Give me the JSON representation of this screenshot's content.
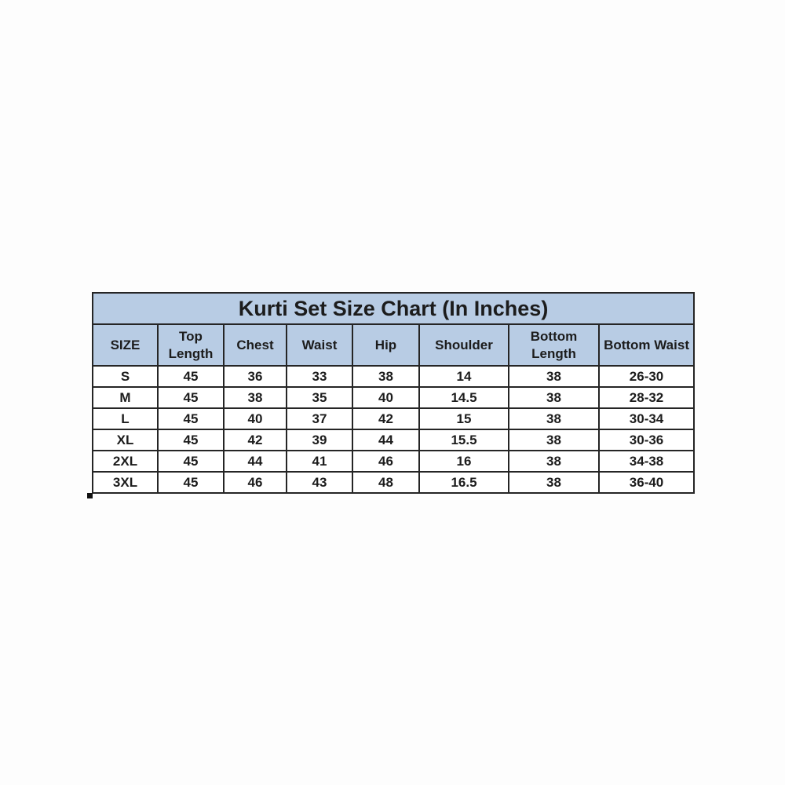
{
  "chart_data": {
    "type": "table",
    "title": "Kurti Set Size Chart (In Inches)",
    "columns": [
      "SIZE",
      "Top Length",
      "Chest",
      "Waist",
      "Hip",
      "Shoulder",
      "Bottom Length",
      "Bottom Waist"
    ],
    "rows": [
      [
        "S",
        "45",
        "36",
        "33",
        "38",
        "14",
        "38",
        "26-30"
      ],
      [
        "M",
        "45",
        "38",
        "35",
        "40",
        "14.5",
        "38",
        "28-32"
      ],
      [
        "L",
        "45",
        "40",
        "37",
        "42",
        "15",
        "38",
        "30-34"
      ],
      [
        "XL",
        "45",
        "42",
        "39",
        "44",
        "15.5",
        "38",
        "30-36"
      ],
      [
        "2XL",
        "45",
        "44",
        "41",
        "46",
        "16",
        "38",
        "34-38"
      ],
      [
        "3XL",
        "45",
        "46",
        "43",
        "48",
        "16.5",
        "38",
        "36-40"
      ]
    ],
    "units": "Inches",
    "colors": {
      "header_background": "#b8cce4",
      "border": "#252525",
      "text": "#1c1c1c",
      "row_background": "#ffffff",
      "page_background": "#fdfdfd"
    },
    "layout": {
      "grid": true,
      "title_position": "top-merged-row",
      "header_rows_shaded": true
    }
  }
}
